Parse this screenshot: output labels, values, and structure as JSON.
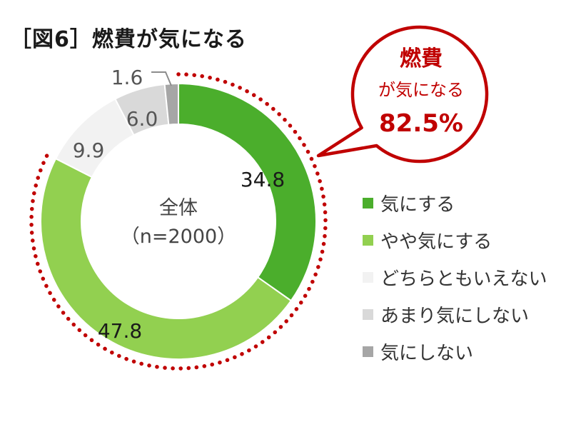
{
  "chart_data": {
    "type": "pie",
    "title": "［図6］燃費が気になる",
    "center_label_line1": "全体",
    "center_label_line2": "（n=2000）",
    "categories": [
      "気にする",
      "やや気にする",
      "どちらともいえない",
      "あまり気にしない",
      "気にしない"
    ],
    "values": [
      34.8,
      47.8,
      9.9,
      6.0,
      1.6
    ],
    "value_labels": [
      "34.8",
      "47.8",
      "9.9",
      "6.0",
      "1.6"
    ],
    "colors": [
      "#4bae2c",
      "#92d050",
      "#f2f2f2",
      "#d9d9d9",
      "#a6a6a6"
    ],
    "legend_position": "right",
    "callout": {
      "line1": "燃費",
      "line2": "が気になる",
      "value": "82.5%",
      "color": "#c00000"
    }
  }
}
